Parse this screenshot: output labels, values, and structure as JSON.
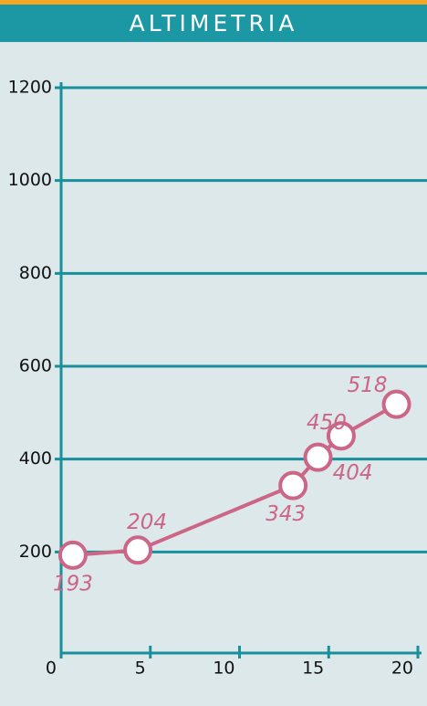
{
  "chart_data": {
    "type": "line",
    "title": "ALTIMETRIA",
    "x": [
      0.66,
      4.3,
      13.0,
      14.4,
      15.7,
      18.8
    ],
    "series": [
      {
        "color": "#cc6687",
        "values": [
          193,
          204,
          343,
          404,
          450,
          518
        ]
      }
    ],
    "xlim": [
      0,
      20
    ],
    "xticks": [
      0,
      5,
      10,
      15,
      20
    ],
    "ylim": [
      0,
      1200
    ],
    "yticks": [
      200,
      400,
      600,
      800,
      1000,
      1200
    ],
    "grid": true
  }
}
